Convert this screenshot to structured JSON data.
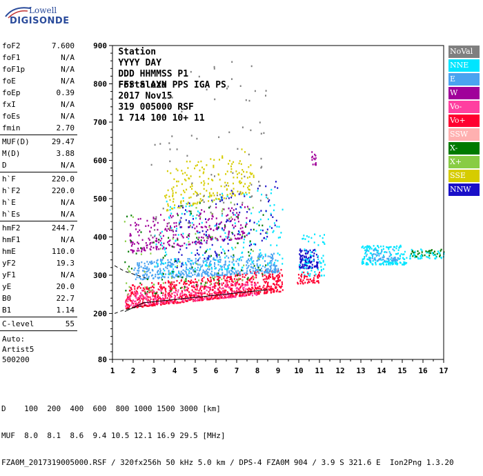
{
  "logo": {
    "line1": "Lowell",
    "line2": "DIGISONDE"
  },
  "header": {
    "row1": [
      "Station",
      "YYYY DAY",
      "DDD HHMMSS P1",
      "FFS S AXN PPS IGA PS"
    ],
    "row2": [
      "Fortaleza",
      "2017 Nov15",
      "319 005000 RSF",
      "1 714 100 10+ 11"
    ]
  },
  "params": {
    "group1": [
      {
        "label": "foF2",
        "value": "7.600"
      },
      {
        "label": "foF1",
        "value": "N/A"
      },
      {
        "label": "foF1p",
        "value": "N/A"
      },
      {
        "label": "foE",
        "value": "N/A"
      },
      {
        "label": "foEp",
        "value": "0.39"
      },
      {
        "label": "fxI",
        "value": "N/A"
      },
      {
        "label": "foEs",
        "value": "N/A"
      },
      {
        "label": "fmin",
        "value": "2.70"
      }
    ],
    "group2": [
      {
        "label": "MUF(D)",
        "value": "29.47"
      },
      {
        "label": "M(D)",
        "value": "3.88"
      },
      {
        "label": "D",
        "value": "N/A"
      }
    ],
    "group3": [
      {
        "label": "h`F",
        "value": "220.0"
      },
      {
        "label": "h`F2",
        "value": "220.0"
      },
      {
        "label": "h`E",
        "value": "N/A"
      },
      {
        "label": "h`Es",
        "value": "N/A"
      }
    ],
    "group4": [
      {
        "label": "hmF2",
        "value": "244.7"
      },
      {
        "label": "hmF1",
        "value": "N/A"
      },
      {
        "label": "hmE",
        "value": "110.0"
      },
      {
        "label": "yF2",
        "value": "19.3"
      },
      {
        "label": "yF1",
        "value": "N/A"
      },
      {
        "label": "yE",
        "value": "20.0"
      },
      {
        "label": "B0",
        "value": "22.7"
      },
      {
        "label": "B1",
        "value": "1.14"
      }
    ],
    "group5": [
      {
        "label": "C-level",
        "value": "55"
      }
    ]
  },
  "auto": {
    "line1": "Auto:",
    "line2": "Artist5",
    "line3": "500200"
  },
  "legend": [
    {
      "label": "NoVal",
      "color": "#7f7f7f"
    },
    {
      "label": "NNE",
      "color": "#00e5ff"
    },
    {
      "label": "E",
      "color": "#4aa3f0"
    },
    {
      "label": "W",
      "color": "#a0009a"
    },
    {
      "label": "Vo-",
      "color": "#ff3fa0"
    },
    {
      "label": "Vo+",
      "color": "#ff0030"
    },
    {
      "label": "SSW",
      "color": "#ffb0b0"
    },
    {
      "label": "X-",
      "color": "#007a00"
    },
    {
      "label": "X+",
      "color": "#88cc44"
    },
    {
      "label": "SSE",
      "color": "#d6cc00"
    },
    {
      "label": "NNW",
      "color": "#1a10c8"
    }
  ],
  "chart_data": {
    "type": "scatter",
    "xlim": [
      1,
      17
    ],
    "ylim": [
      80,
      900
    ],
    "xticks": [
      1,
      2,
      3,
      4,
      5,
      6,
      7,
      8,
      9,
      10,
      11,
      12,
      13,
      14,
      15,
      16,
      17
    ],
    "yticks": [
      80,
      200,
      300,
      400,
      500,
      600,
      700,
      800,
      900
    ],
    "grid": false,
    "legend_position": "right",
    "clusters": [
      {
        "series": "Vo+",
        "xmin": 1.6,
        "xmax": 9.2,
        "ymin_start": 215,
        "ymin_end": 260,
        "band": 60,
        "n": 900
      },
      {
        "series": "Vo-",
        "xmin": 1.6,
        "xmax": 8.0,
        "ymin_start": 220,
        "ymin_end": 250,
        "band": 40,
        "n": 250
      },
      {
        "series": "E",
        "xmin": 2.0,
        "xmax": 9.0,
        "ymin_start": 290,
        "ymin_end": 310,
        "band": 50,
        "n": 500
      },
      {
        "series": "NNE",
        "xmin": 3.0,
        "xmax": 9.2,
        "ymin_start": 300,
        "ymin_end": 330,
        "band": 200,
        "n": 200
      },
      {
        "series": "W",
        "xmin": 1.8,
        "xmax": 7.5,
        "ymin_start": 360,
        "ymin_end": 400,
        "band": 90,
        "n": 280
      },
      {
        "series": "SSE",
        "xmin": 3.5,
        "xmax": 7.8,
        "ymin_start": 470,
        "ymin_end": 520,
        "band": 120,
        "n": 200
      },
      {
        "series": "NNW",
        "xmin": 4.0,
        "xmax": 9.0,
        "ymin_start": 320,
        "ymin_end": 400,
        "band": 160,
        "n": 120
      },
      {
        "series": "X-",
        "xmin": 1.5,
        "xmax": 8.5,
        "ymin_start": 240,
        "ymin_end": 300,
        "band": 220,
        "n": 90
      },
      {
        "series": "X+",
        "xmin": 1.5,
        "xmax": 8.5,
        "ymin_start": 240,
        "ymin_end": 300,
        "band": 220,
        "n": 70
      },
      {
        "series": "NoVal",
        "xmin": 2.8,
        "xmax": 8.5,
        "ymin_start": 400,
        "ymin_end": 500,
        "band": 400,
        "n": 90
      },
      {
        "series": "NNW",
        "xmin": 10.0,
        "xmax": 10.9,
        "ymin_start": 320,
        "ymin_end": 320,
        "band": 50,
        "n": 120
      },
      {
        "series": "NNE",
        "xmin": 10.0,
        "xmax": 11.3,
        "ymin_start": 300,
        "ymin_end": 300,
        "band": 110,
        "n": 70
      },
      {
        "series": "Vo+",
        "xmin": 9.8,
        "xmax": 11.0,
        "ymin_start": 280,
        "ymin_end": 280,
        "band": 30,
        "n": 50
      },
      {
        "series": "W",
        "xmin": 10.6,
        "xmax": 10.8,
        "ymin_start": 590,
        "ymin_end": 590,
        "band": 40,
        "n": 15
      },
      {
        "series": "NNE",
        "xmin": 13.0,
        "xmax": 15.2,
        "ymin_start": 330,
        "ymin_end": 330,
        "band": 50,
        "n": 180
      },
      {
        "series": "E",
        "xmin": 13.2,
        "xmax": 14.8,
        "ymin_start": 340,
        "ymin_end": 340,
        "band": 30,
        "n": 50
      },
      {
        "series": "X-",
        "xmin": 15.3,
        "xmax": 17.0,
        "ymin_start": 350,
        "ymin_end": 350,
        "band": 20,
        "n": 40
      },
      {
        "series": "NNE",
        "xmin": 15.3,
        "xmax": 17.0,
        "ymin_start": 345,
        "ymin_end": 345,
        "band": 25,
        "n": 40
      }
    ],
    "profile_lines": [
      {
        "name": "solid",
        "points": [
          [
            1.6,
            205
          ],
          [
            2.5,
            228
          ],
          [
            8.5,
            262
          ]
        ]
      },
      {
        "name": "dashed-upper",
        "points": [
          [
            1.1,
            325
          ],
          [
            1.6,
            310
          ],
          [
            2.6,
            293
          ]
        ]
      },
      {
        "name": "dashed-lower",
        "points": [
          [
            1.1,
            200
          ],
          [
            1.6,
            210
          ],
          [
            2.6,
            222
          ]
        ]
      }
    ]
  },
  "footer": {
    "line1": "D    100  200  400  600  800 1000 1500 3000 [km]",
    "line2": "MUF  8.0  8.1  8.6  9.4 10.5 12.1 16.9 29.5 [MHz]",
    "line3": "FZA0M_2017319005000.RSF / 320fx256h 50 kHz 5.0 km / DPS-4 FZA0M 904 / 3.9 S 321.6 E  Ion2Png 1.3.20"
  }
}
